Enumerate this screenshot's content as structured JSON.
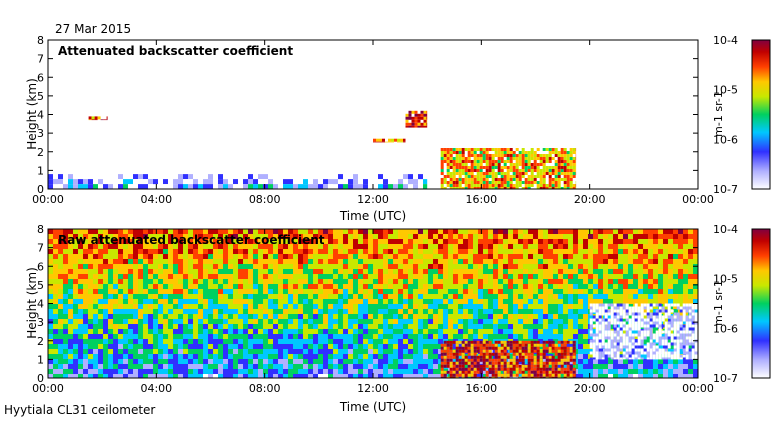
{
  "header": {
    "date": "27 Mar 2015",
    "footer": "Hyytiala CL31 ceilometer"
  },
  "colors": {
    "colormap": [
      "#ffffff",
      "#b0b0ff",
      "#3030ff",
      "#00c8ff",
      "#00d060",
      "#c8e800",
      "#ffc800",
      "#ff4000",
      "#c00000",
      "#800040"
    ]
  },
  "chart_data": [
    {
      "type": "heatmap",
      "title": "Attenuated backscatter coefficient",
      "xlabel": "Time (UTC)",
      "ylabel": "Height (km)",
      "x_ticks": [
        "00:00",
        "04:00",
        "08:00",
        "12:00",
        "16:00",
        "20:00",
        "00:00"
      ],
      "x_range_hours": [
        0,
        24
      ],
      "y_ticks": [
        "0",
        "1",
        "2",
        "3",
        "4",
        "5",
        "6",
        "7",
        "8"
      ],
      "ylim": [
        0,
        8
      ],
      "colorbar": {
        "label": "m-1 sr-1",
        "ticks": [
          "10-7",
          "10-6",
          "10-5",
          "10-4"
        ],
        "range_log10": [
          -7,
          -4
        ]
      },
      "features": [
        {
          "time_h": [
            0,
            14
          ],
          "height_km": [
            0,
            0.8
          ],
          "level_log10": -6.5
        },
        {
          "time_h": [
            14.5,
            19.5
          ],
          "height_km": [
            0,
            2.2
          ],
          "level_log10": -5
        },
        {
          "time_h": [
            13.2,
            14
          ],
          "height_km": [
            3.3,
            4.2
          ],
          "level_log10": -4.5
        },
        {
          "time_h": [
            12,
            13.2
          ],
          "height_km": [
            2.5,
            2.7
          ],
          "level_log10": -4.8
        },
        {
          "time_h": [
            1.5,
            2.2
          ],
          "height_km": [
            3.7,
            3.9
          ],
          "level_log10": -4.7
        }
      ]
    },
    {
      "type": "heatmap",
      "title": "Raw attenuated backscatter coefficient",
      "xlabel": "Time (UTC)",
      "ylabel": "Height (km)",
      "x_ticks": [
        "00:00",
        "04:00",
        "08:00",
        "12:00",
        "16:00",
        "20:00",
        "00:00"
      ],
      "x_range_hours": [
        0,
        24
      ],
      "y_ticks": [
        "0",
        "1",
        "2",
        "3",
        "4",
        "5",
        "6",
        "7",
        "8"
      ],
      "ylim": [
        0,
        8
      ],
      "colorbar": {
        "label": "m-1 sr-1",
        "ticks": [
          "10-7",
          "10-6",
          "10-5",
          "10-4"
        ],
        "range_log10": [
          -7,
          -4
        ]
      },
      "features": [
        {
          "time_h": [
            0,
            24
          ],
          "height_km": [
            0,
            8
          ],
          "level_log10": -5.5
        },
        {
          "time_h": [
            14.5,
            19.5
          ],
          "height_km": [
            0,
            2
          ],
          "level_log10": -4.5
        },
        {
          "time_h": [
            20,
            24
          ],
          "height_km": [
            1,
            4
          ],
          "level_log10": -7
        }
      ]
    }
  ]
}
